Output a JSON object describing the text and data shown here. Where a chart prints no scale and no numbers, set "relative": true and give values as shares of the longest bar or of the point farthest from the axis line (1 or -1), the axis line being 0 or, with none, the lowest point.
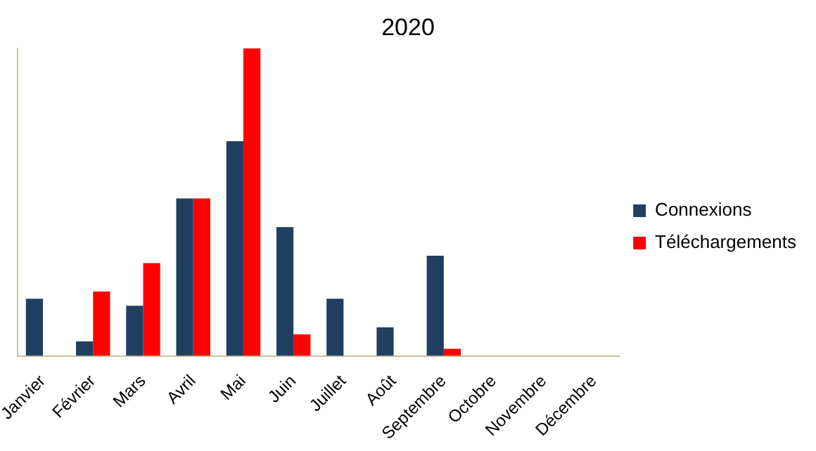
{
  "chart_data": {
    "type": "bar",
    "title": "2020",
    "relative": true,
    "legend": "right",
    "categories": [
      "Janvier",
      "Février",
      "Mars",
      "Avril",
      "Mai",
      "Juin",
      "Juillet",
      "Août",
      "Septembre",
      "Octobre",
      "Novembre",
      "Décembre"
    ],
    "series": [
      {
        "name": "Connexions",
        "color": "#203f61",
        "values": [
          0.186,
          0.047,
          0.163,
          0.512,
          0.698,
          0.419,
          0.186,
          0.093,
          0.326,
          0,
          0,
          0
        ]
      },
      {
        "name": "Téléchargements",
        "color": "#ff0000",
        "values": [
          0,
          0.209,
          0.302,
          0.512,
          1,
          0.07,
          0,
          0,
          0.023,
          0,
          0,
          0
        ]
      }
    ]
  }
}
